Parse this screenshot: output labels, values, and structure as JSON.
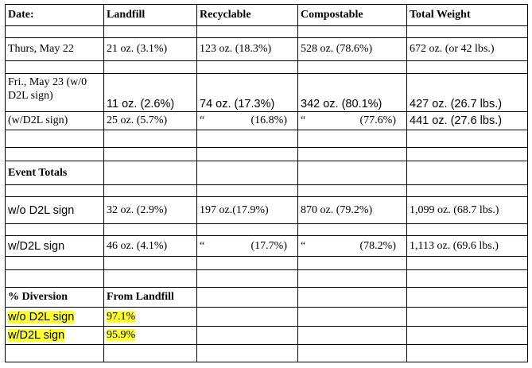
{
  "table": {
    "header": [
      "Date:",
      "Landfill",
      "Recyclable",
      "Compostable",
      "Total Weight"
    ],
    "daily": [
      [
        "Thurs, May 22",
        "21 oz. (3.1%)",
        "123 oz. (18.3%)",
        "528 oz. (78.6%)",
        "672 oz. (or 42 lbs.)"
      ],
      [
        "Fri., May 23 (w/0 D2L sign)",
        "11 oz. (2.6%)",
        "74 oz. (17.3%)",
        "342 oz. (80.1%)",
        "427 oz. (26.7 lbs.)"
      ],
      [
        "(w/D2L sign)",
        "25 oz. (5.7%)",
        {
          "mark": "“",
          "text": "(16.8%)"
        },
        {
          "mark": "“",
          "text": "(77.6%)"
        },
        "441 oz. (27.6 lbs.)"
      ]
    ],
    "event_totals": {
      "title": "Event Totals",
      "rows": [
        [
          "w/o D2L sign",
          "32 oz. (2.9%)",
          "197 oz.(17.9%)",
          "870 oz. (79.2%)",
          "1,099 oz. (68.7 lbs.)"
        ],
        [
          "w/D2L sign",
          "46 oz. (4.1%)",
          {
            "mark": "“",
            "text": "(17.7%)"
          },
          {
            "mark": "“",
            "text": "(78.2%)"
          },
          "1,113 oz. (69.6 lbs.)"
        ]
      ]
    },
    "diversion": {
      "header": [
        "% Diversion",
        "From Landfill"
      ],
      "rows": [
        [
          "w/o D2L sign",
          "97.1%"
        ],
        [
          "w/D2L sign",
          "95.9%"
        ]
      ]
    }
  }
}
